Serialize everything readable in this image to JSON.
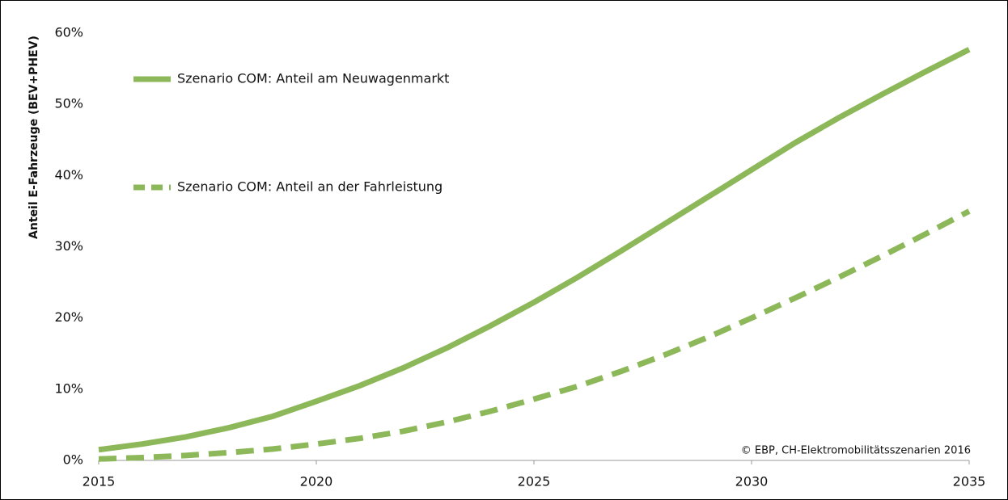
{
  "chart_data": {
    "type": "line",
    "y_label": "Anteil E-Fahrzeuge (BEV+PHEV)",
    "annotation": "© EBP, CH-Elektromobilitätsszenarien 2016",
    "x": [
      2015,
      2016,
      2017,
      2018,
      2019,
      2020,
      2021,
      2022,
      2023,
      2024,
      2025,
      2026,
      2027,
      2028,
      2029,
      2030,
      2031,
      2032,
      2033,
      2034,
      2035
    ],
    "series": [
      {
        "name": "Szenario COM: Anteil am Neuwagenmarkt",
        "color": "#8db85a",
        "dash": false,
        "values": [
          1.5,
          2.3,
          3.3,
          4.6,
          6.2,
          8.3,
          10.5,
          13.0,
          15.8,
          18.9,
          22.2,
          25.7,
          29.4,
          33.2,
          37.0,
          40.8,
          44.6,
          48.1,
          51.4,
          54.6,
          57.7
        ]
      },
      {
        "name": "Szenario COM: Anteil an der Fahrleistung",
        "color": "#8db85a",
        "dash": true,
        "values": [
          0.2,
          0.4,
          0.7,
          1.1,
          1.6,
          2.3,
          3.1,
          4.1,
          5.4,
          6.9,
          8.6,
          10.4,
          12.5,
          14.8,
          17.3,
          20.0,
          22.8,
          25.7,
          28.7,
          31.8,
          35.0
        ]
      }
    ],
    "xlim": [
      2015,
      2035
    ],
    "xticks": [
      2015,
      2020,
      2025,
      2030,
      2035
    ],
    "ylim": [
      0,
      60
    ],
    "yticks": [
      {
        "value": 0,
        "label": "0%"
      },
      {
        "value": 10,
        "label": "10%"
      },
      {
        "value": 20,
        "label": "20%"
      },
      {
        "value": 30,
        "label": "30%"
      },
      {
        "value": 40,
        "label": "40%"
      },
      {
        "value": 50,
        "label": "50%"
      },
      {
        "value": 60,
        "label": "60%"
      }
    ],
    "grid": false
  }
}
